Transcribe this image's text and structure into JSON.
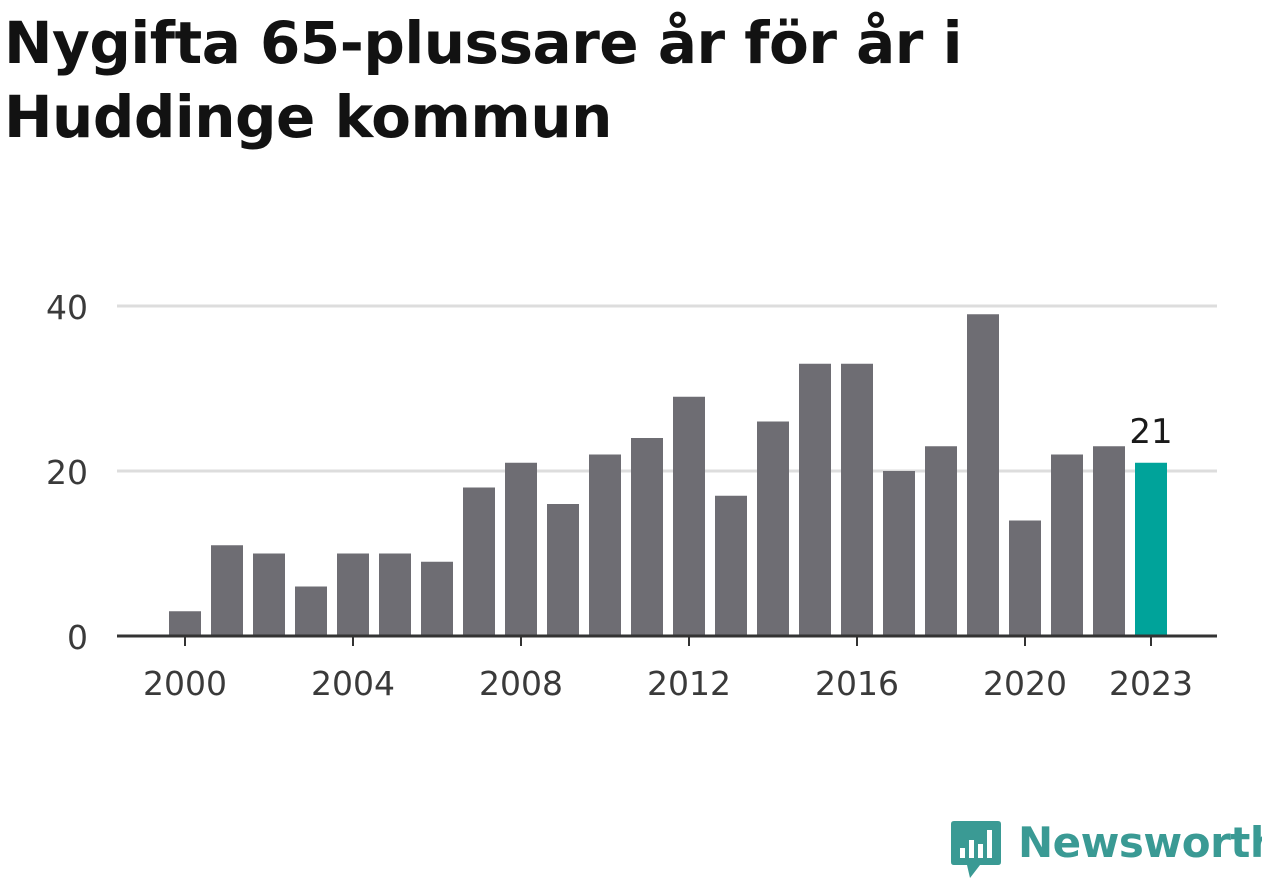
{
  "title": "Nygifta 65-plussare år för år i Huddinge kommun",
  "chart_data": {
    "type": "bar",
    "title": "Nygifta 65-plussare år för år i Huddinge kommun",
    "xlabel": "",
    "ylabel": "",
    "categories": [
      "2000",
      "2001",
      "2002",
      "2003",
      "2004",
      "2005",
      "2006",
      "2007",
      "2008",
      "2009",
      "2010",
      "2011",
      "2012",
      "2013",
      "2014",
      "2015",
      "2016",
      "2017",
      "2018",
      "2019",
      "2020",
      "2021",
      "2022",
      "2023"
    ],
    "values": [
      3,
      11,
      10,
      6,
      10,
      10,
      9,
      18,
      21,
      16,
      22,
      24,
      29,
      17,
      26,
      33,
      33,
      20,
      23,
      39,
      14,
      22,
      23,
      21
    ],
    "ylim": [
      0,
      40
    ],
    "yticks": [
      0,
      20,
      40
    ],
    "xticks": [
      "2000",
      "2004",
      "2008",
      "2012",
      "2016",
      "2020",
      "2023"
    ],
    "highlight": {
      "category": "2023",
      "label": "21"
    },
    "grid": true,
    "colors": {
      "bar": "#6e6d73",
      "highlight": "#00a39a",
      "grid": "#dddddd",
      "axis": "#333333",
      "tick_text": "#3a3a3a"
    }
  },
  "brand": {
    "name": "Newsworthy",
    "color": "#3a9a94",
    "icon": "newsworthy-chart-bubble-icon"
  }
}
